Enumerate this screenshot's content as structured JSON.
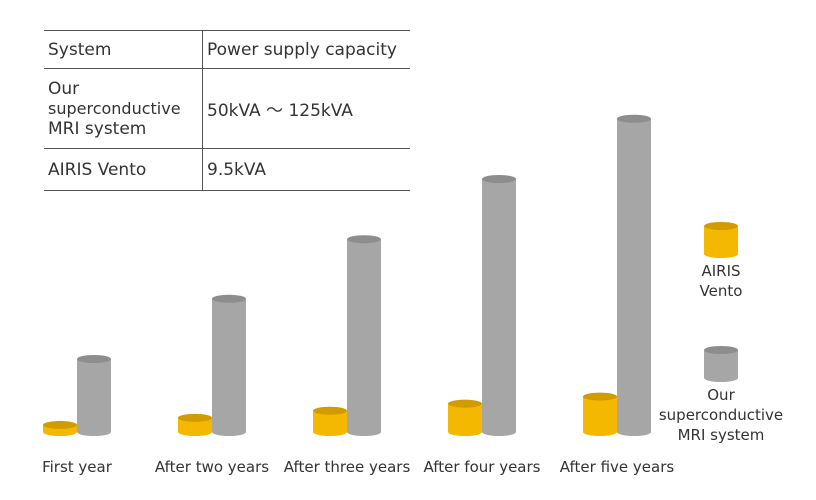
{
  "table": {
    "header": [
      "System",
      "Power supply capacity"
    ],
    "rows": [
      {
        "system_lines": [
          "Our",
          "superconductive",
          "MRI system"
        ],
        "capacity": "50kVA 〜 125kVA"
      },
      {
        "system_lines": [
          "AIRIS Vento"
        ],
        "capacity": "9.5kVA"
      }
    ]
  },
  "chart_data": {
    "type": "bar",
    "title": "",
    "xlabel": "",
    "ylabel": "",
    "categories": [
      "First year",
      "After two years",
      "After three years",
      "After four years",
      "After five years"
    ],
    "series": [
      {
        "name": "AIRIS Vento",
        "color": "#f5b800",
        "values": [
          1,
          2,
          3,
          4,
          5
        ]
      },
      {
        "name": "Our superconductive MRI system",
        "color": "#a6a6a6",
        "values": [
          10.3,
          18.8,
          27.2,
          35.7,
          44.2
        ]
      }
    ],
    "ylim": [
      0,
      46
    ],
    "grid": false,
    "legend": "right",
    "legend_lines": [
      [
        "AIRIS",
        "Vento"
      ],
      [
        "Our",
        "superconductive",
        "MRI system"
      ]
    ]
  }
}
